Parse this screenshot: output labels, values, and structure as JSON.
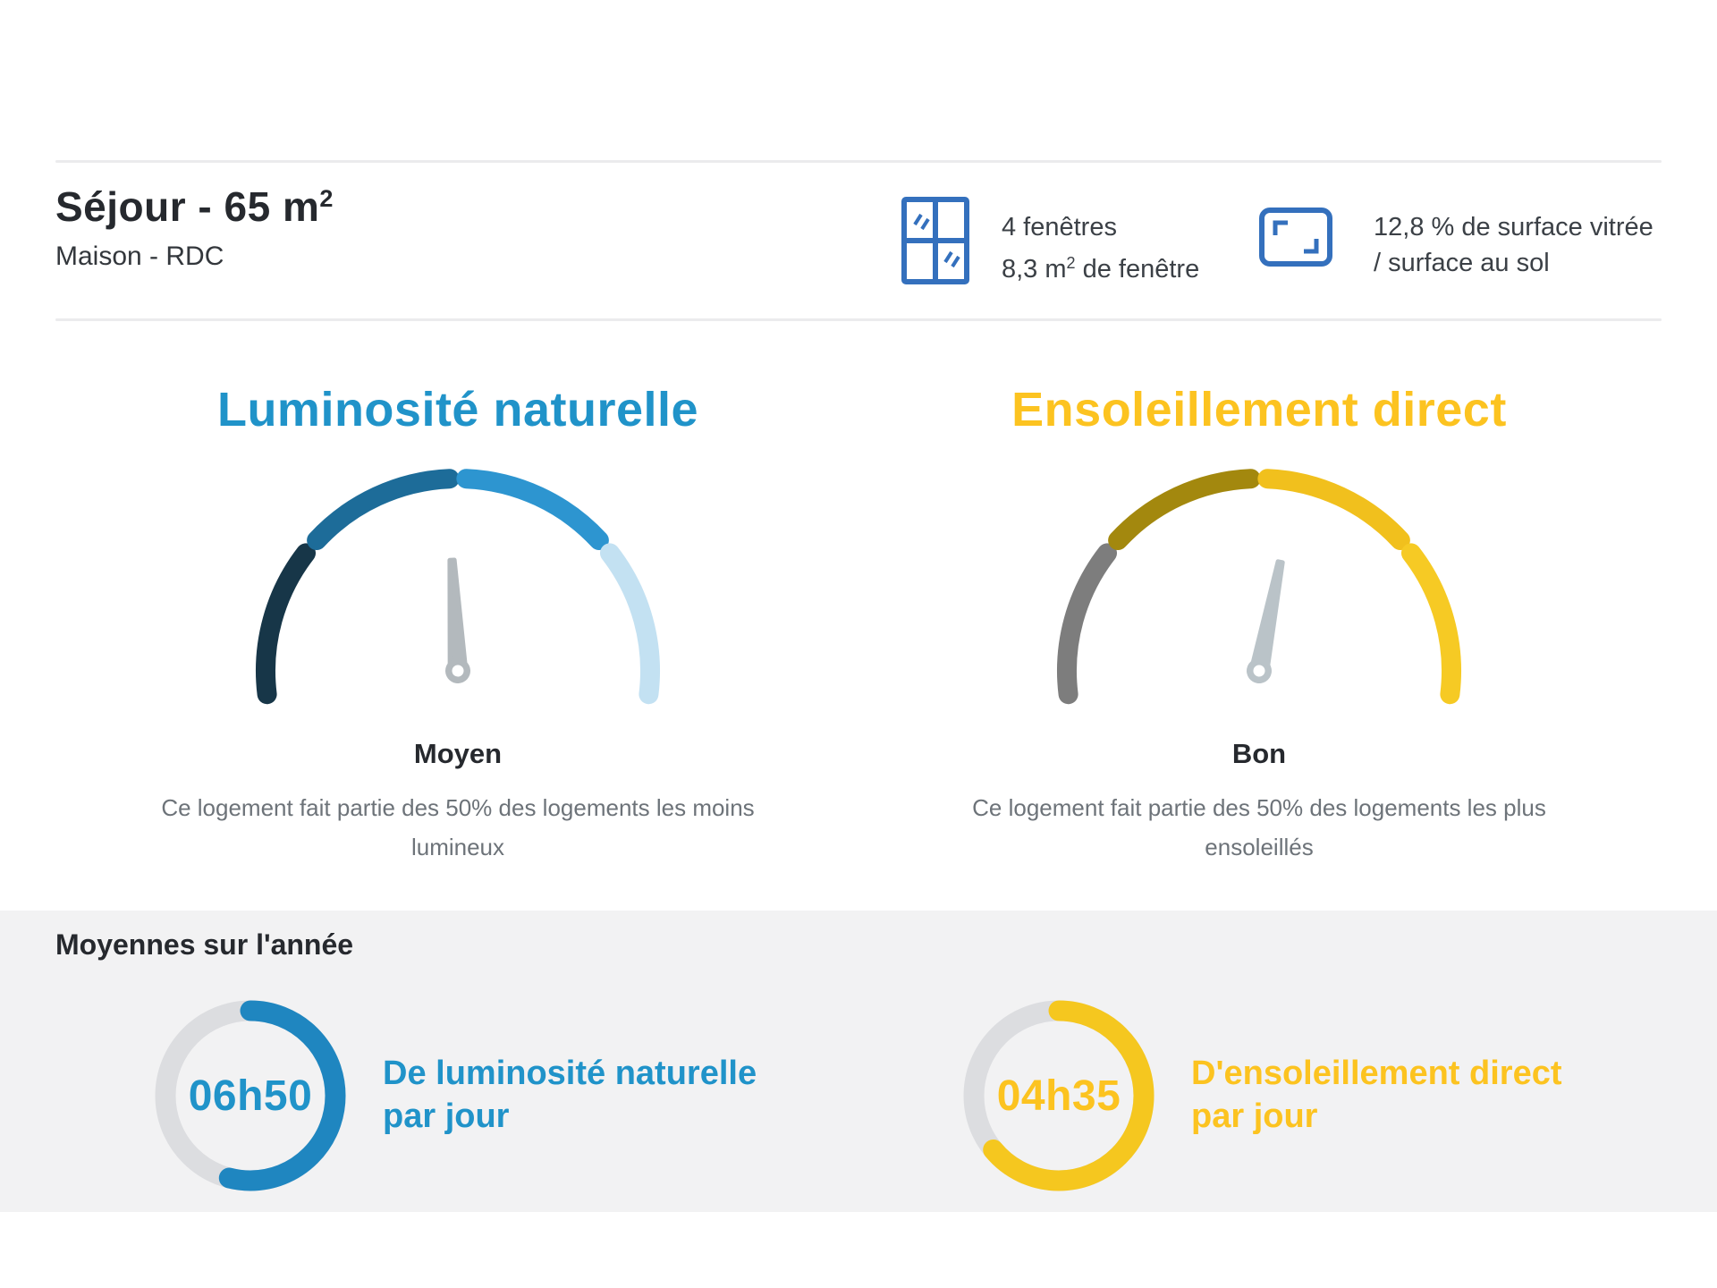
{
  "header": {
    "room": {
      "title": "Séjour - 65 m",
      "title_sup": "2",
      "subtitle": "Maison - RDC"
    },
    "windows": {
      "icon": "window-icon",
      "line1": "4 fenêtres",
      "line2_pre": "8,3 m",
      "line2_sup": "2",
      "line2_post": " de fenêtre"
    },
    "glazing": {
      "icon": "surface-ratio-icon",
      "line1": "12,8 % de surface vitrée",
      "line2": "/ surface au sol"
    }
  },
  "annual": {
    "heading": "Moyennes sur l'année"
  },
  "colors": {
    "accent_blue": "#2093c9",
    "accent_yellow": "#fcc320",
    "icon_blue": "#3470bd",
    "band_background": "#f2f2f3",
    "separator": "#ebebed",
    "text_dark": "#26292e",
    "text_gray": "#6d7379"
  },
  "chart_data": [
    {
      "type": "gauge",
      "title": "Luminosité naturelle",
      "title_color": "#2093c9",
      "rating": "Moyen",
      "description": "Ce logement fait partie des 50% des logements les moins lumineux",
      "arc": {
        "start_deg": -97,
        "end_deg": 97,
        "gap_deg": 5
      },
      "segment_colors": [
        "#173648",
        "#1d6c99",
        "#2d95d0",
        "#c3e1f2"
      ],
      "needle_deg": -3,
      "needle_color": "#b3b9bd"
    },
    {
      "type": "gauge",
      "title": "Ensoleillement direct",
      "title_color": "#fcc320",
      "rating": "Bon",
      "description": "Ce logement fait partie des 50% des logements les plus ensoleillés",
      "arc": {
        "start_deg": -97,
        "end_deg": 97,
        "gap_deg": 5
      },
      "segment_colors": [
        "#7d7d7d",
        "#a3880e",
        "#f1c01d",
        "#f6ca24"
      ],
      "needle_deg": 11,
      "needle_color": "#bac3c8"
    },
    {
      "type": "donut",
      "value": "06h50",
      "label_line1": "De luminosité naturelle",
      "label_line2": "par jour",
      "fraction": 0.54,
      "ring_color": "#1f86c0",
      "track_color": "#dcdde0",
      "label_color": "#2093c9"
    },
    {
      "type": "donut",
      "value": "04h35",
      "label_line1": "D'ensoleillement direct",
      "label_line2": "par jour",
      "fraction": 0.64,
      "ring_color": "#f5c71f",
      "track_color": "#dcdde0",
      "label_color": "#fcc320"
    }
  ]
}
